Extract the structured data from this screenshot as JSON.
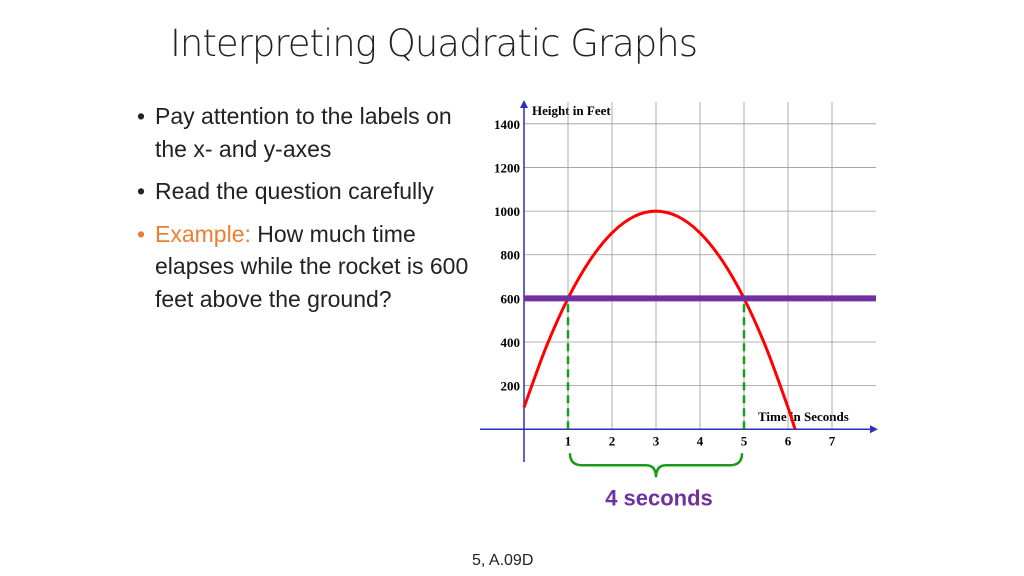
{
  "slide": {
    "title": "Interpreting Quadratic Graphs",
    "bullets": [
      {
        "text": "Pay attention to the labels on the x- and y-axes"
      },
      {
        "text": "Read the question carefully"
      },
      {
        "label": "Example:",
        "text": "How much time elapses while the rocket is 600 feet above the ground?"
      }
    ],
    "footer": "5, A.09D"
  },
  "chart_data": {
    "type": "line",
    "ylabel": "Height in Feet",
    "xlabel": "Time in Seconds",
    "x": [
      0,
      0.5,
      1,
      1.5,
      2,
      2.5,
      3,
      3.5,
      4,
      4.5,
      5,
      5.5,
      6,
      6.16
    ],
    "series": [
      {
        "color": "#ff0000",
        "values": [
          100,
          375,
          600,
          775,
          900,
          975,
          1000,
          975,
          900,
          775,
          600,
          375,
          100,
          0
        ]
      }
    ],
    "xlim": [
      -1,
      8
    ],
    "ylim": [
      -150,
      1500
    ],
    "xticks": [
      1,
      2,
      3,
      4,
      5,
      6,
      7
    ],
    "yticks": [
      200,
      400,
      600,
      800,
      1000,
      1200,
      1400
    ],
    "grid": true,
    "reference_line": {
      "value": 600,
      "color": "#7030a0"
    },
    "highlight_x": [
      1,
      5
    ],
    "highlight_color": "#1a9a1a",
    "annotation": "4 seconds",
    "annotation_color": "#7030a0"
  }
}
